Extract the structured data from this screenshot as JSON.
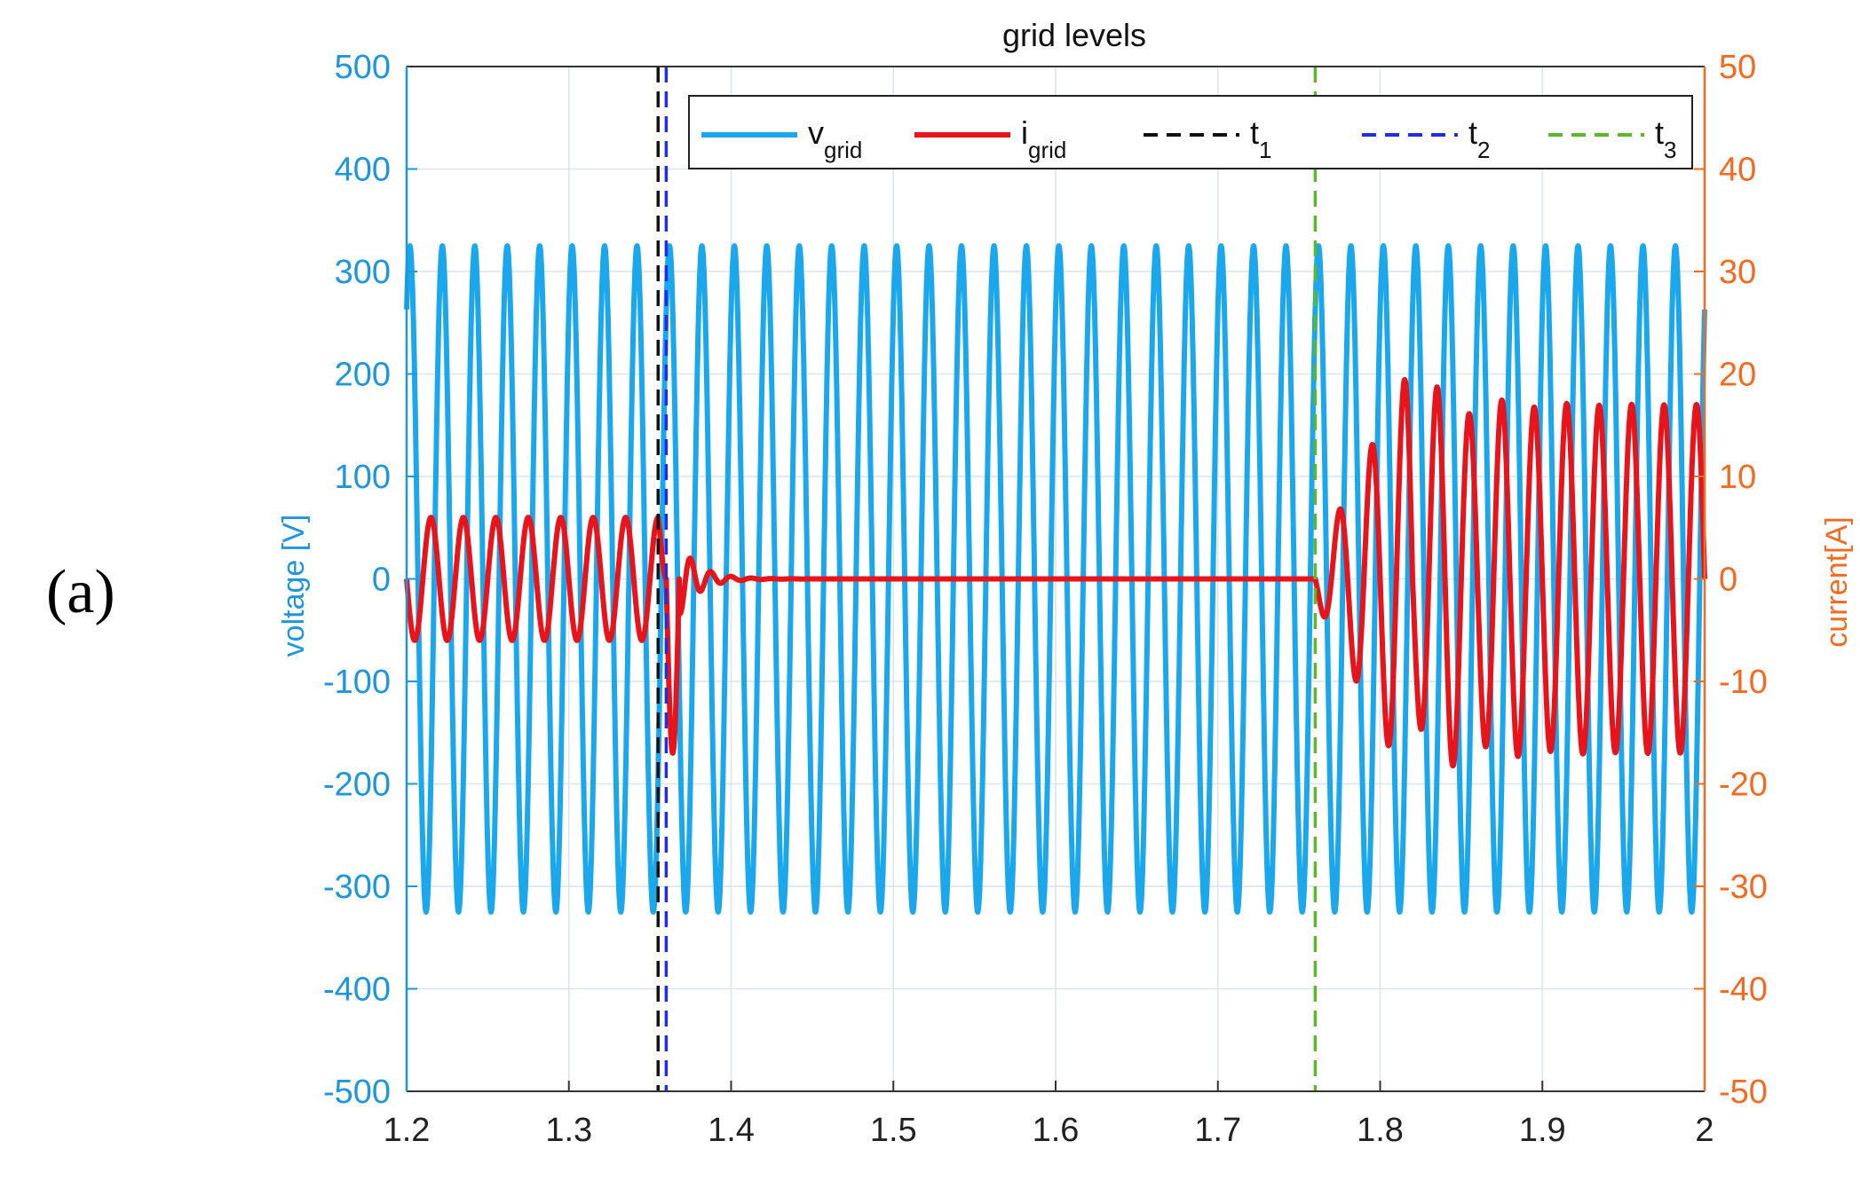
{
  "panel_label": "(a)",
  "chart_data": {
    "type": "line",
    "title": "grid levels",
    "xlabel": "",
    "xlim": [
      1.2,
      2
    ],
    "x_ticks": [
      "1.2",
      "1.3",
      "1.4",
      "1.5",
      "1.6",
      "1.7",
      "1.8",
      "1.9",
      "2"
    ],
    "y_left": {
      "label": "voltage [V]",
      "lim": [
        -500,
        500
      ],
      "ticks": [
        "500",
        "400",
        "300",
        "200",
        "100",
        "0",
        "-100",
        "-200",
        "-300",
        "-400",
        "-500"
      ],
      "color": "#1f96dc"
    },
    "y_right": {
      "label": "current[A]",
      "lim": [
        -50,
        50
      ],
      "ticks": [
        "50",
        "40",
        "30",
        "20",
        "10",
        "0",
        "-10",
        "-20",
        "-30",
        "-40",
        "-50"
      ],
      "color": "#f26b21"
    },
    "grid": true,
    "legend_position": "top-right",
    "series": [
      {
        "name": "v",
        "sub": "grid",
        "axis": "left",
        "color": "#1aa7ec",
        "style": "solid",
        "description": "sinusoid amplitude 325 V, 50 Hz over whole range"
      },
      {
        "name": "i",
        "sub": "grid",
        "axis": "right",
        "color": "#e8141c",
        "style": "solid",
        "segments": [
          {
            "x_start": 1.2,
            "x_end": 1.355,
            "amplitude": 6
          },
          {
            "x_start": 1.36,
            "x_end": 1.5,
            "amplitude": 0,
            "transient_peak": -17
          },
          {
            "x_start": 1.5,
            "x_end": 1.76,
            "amplitude": 0
          },
          {
            "x_start": 1.765,
            "x_end": 2.0,
            "amplitude": 17,
            "transient_peak": 21
          }
        ]
      },
      {
        "name": "t",
        "sub": "1",
        "axis": "x",
        "color": "#111111",
        "style": "dashed",
        "x": 1.355
      },
      {
        "name": "t",
        "sub": "2",
        "axis": "x",
        "color": "#1f2ee6",
        "style": "dashed",
        "x": 1.36
      },
      {
        "name": "t",
        "sub": "3",
        "axis": "x",
        "color": "#5cb82a",
        "style": "dashed",
        "x": 1.76
      }
    ]
  }
}
